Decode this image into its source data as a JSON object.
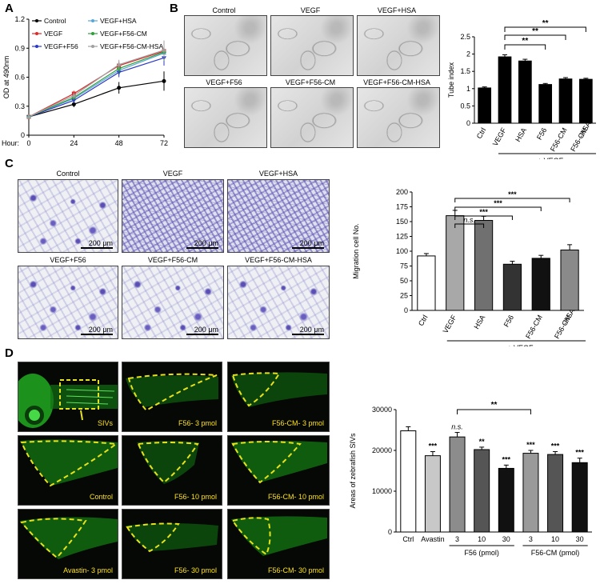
{
  "panels": {
    "a": "A",
    "b": "B",
    "c": "C",
    "d": "D"
  },
  "panel_b_images": [
    "Control",
    "VEGF",
    "VEGF+HSA",
    "VEGF+F56",
    "VEGF+F56-CM",
    "VEGF+F56-CM-HSA"
  ],
  "panel_c_images": [
    "Control",
    "VEGF",
    "VEGF+HSA",
    "VEGF+F56",
    "VEGF+F56-CM",
    "VEGF+F56-CM-HSA"
  ],
  "scale_bar": "200 μm",
  "panel_d_images": [
    "SIVs",
    "F56- 3 pmol",
    "F56-CM- 3 pmol",
    "Control",
    "F56- 10 pmol",
    "F56-CM- 10 pmol",
    "Avastin- 3 pmol",
    "F56- 30 pmol",
    "F56-CM- 30 pmol"
  ],
  "colors": {
    "control": "#000000",
    "vegf": "#d62c2c",
    "f56": "#2b38c6",
    "f56cm": "#2e9e3a",
    "hsa": "#58a6d6",
    "f56cmhsa": "#a0a0a0",
    "dash": "#e8e21a"
  },
  "chart_data": [
    {
      "id": "A",
      "type": "line",
      "x": [
        0,
        24,
        48,
        72
      ],
      "xlabel": "Hour:",
      "ylabel": "OD at 490nm",
      "ylim": [
        0,
        1.2
      ],
      "yticks": [
        0,
        0.3,
        0.6,
        0.9,
        1.2
      ],
      "xticks": [
        0,
        24,
        48,
        72
      ],
      "legend": "top-left",
      "series": [
        {
          "name": "Control",
          "values": [
            0.19,
            0.32,
            0.49,
            0.56
          ],
          "err": [
            0.02,
            0.03,
            0.06,
            0.1
          ],
          "marker": "circle"
        },
        {
          "name": "VEGF",
          "values": [
            0.19,
            0.43,
            0.72,
            0.87
          ],
          "err": [
            0.02,
            0.03,
            0.04,
            0.06
          ],
          "marker": "square"
        },
        {
          "name": "VEGF+HSA",
          "values": [
            0.19,
            0.38,
            0.67,
            0.85
          ],
          "err": [
            0.02,
            0.03,
            0.05,
            0.08
          ],
          "marker": "triangle-up"
        },
        {
          "name": "VEGF+F56",
          "values": [
            0.19,
            0.36,
            0.65,
            0.8
          ],
          "err": [
            0.02,
            0.03,
            0.05,
            0.08
          ],
          "marker": "triangle-down"
        },
        {
          "name": "VEGF+F56-CM",
          "values": [
            0.19,
            0.39,
            0.69,
            0.86
          ],
          "err": [
            0.02,
            0.03,
            0.05,
            0.09
          ],
          "marker": "diamond"
        },
        {
          "name": "VEGF+F56-CM-HSA",
          "values": [
            0.19,
            0.41,
            0.73,
            0.88
          ],
          "err": [
            0.02,
            0.03,
            0.05,
            0.1
          ],
          "marker": "triangle-up"
        }
      ]
    },
    {
      "id": "B",
      "type": "bar",
      "categories": [
        "Ctrl",
        "VEGF",
        "HSA",
        "F56",
        "F56-CM",
        "F56-CM\n-HSA"
      ],
      "values": [
        1.02,
        1.92,
        1.8,
        1.12,
        1.28,
        1.27
      ],
      "err": [
        0.03,
        0.06,
        0.05,
        0.03,
        0.04,
        0.03
      ],
      "ylabel": "Tube index",
      "ylim": [
        0,
        2.5
      ],
      "yticks": [
        0,
        0.5,
        1,
        1.5,
        2,
        2.5
      ],
      "group_label": "+ VEGF",
      "annotations": [
        "**",
        "**",
        "**"
      ]
    },
    {
      "id": "C",
      "type": "bar",
      "categories": [
        "Ctrl",
        "VEGF",
        "HSA",
        "F56",
        "F56-CM",
        "F56-CM\n-HSA"
      ],
      "values": [
        92,
        160,
        152,
        78,
        88,
        102
      ],
      "err": [
        4,
        9,
        7,
        5,
        5,
        9
      ],
      "ylabel": "Migration cell No.",
      "ylim": [
        0,
        200
      ],
      "yticks": [
        0,
        25,
        50,
        75,
        100,
        125,
        150,
        175,
        200
      ],
      "group_label": "+ VEGF",
      "annotations": [
        "n.s.",
        "***",
        "***",
        "***"
      ]
    },
    {
      "id": "D",
      "type": "bar",
      "categories": [
        "Ctrl",
        "Avastin",
        "3",
        "10",
        "30",
        "3",
        "10",
        "30"
      ],
      "values": [
        24800,
        18700,
        23300,
        20200,
        15600,
        19300,
        19000,
        17000
      ],
      "err": [
        1000,
        1000,
        1100,
        600,
        800,
        700,
        700,
        1100
      ],
      "ylabel": "Areas of zebrafish SIVs",
      "ylim": [
        0,
        30000
      ],
      "yticks": [
        0,
        10000,
        20000,
        30000
      ],
      "group_labels": [
        "F56 (pmol)",
        "F56-CM (pmol)"
      ],
      "annotations": [
        "***",
        "n.s.",
        "**",
        "***",
        "***",
        "***",
        "***",
        "**"
      ]
    }
  ]
}
